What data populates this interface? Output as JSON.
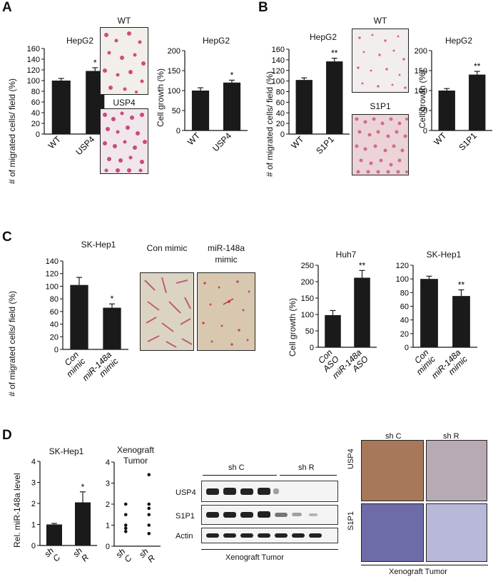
{
  "panel_labels": [
    "A",
    "B",
    "C",
    "D"
  ],
  "panelA": {
    "micro_labels": [
      "WT",
      "USP4"
    ]
  },
  "panelB": {
    "micro_labels": [
      "WT",
      "S1P1"
    ]
  },
  "panelC": {
    "micro_labels": [
      "Con mimic",
      "miR-148a mimic"
    ]
  },
  "panelD": {
    "blot": {
      "groups": [
        "sh C",
        "sh R"
      ],
      "rows": [
        "USP4",
        "S1P1",
        "Actin"
      ],
      "caption": "Xenograft Tumor"
    },
    "ihc": {
      "cols": [
        "sh C",
        "sh R"
      ],
      "rows": [
        "USP4",
        "S1P1"
      ],
      "caption": "Xenograft Tumor"
    }
  },
  "colors": {
    "bar": "#1a1a1a",
    "ihc_brown": "#8a5a44",
    "ihc_blue": "#6b6ea8",
    "stain": "#c8326b"
  },
  "chart_data": [
    {
      "id": "a1",
      "type": "bar",
      "title": "HepG2",
      "ylabel": "# of migrated cells/ field (%)",
      "categories": [
        "WT",
        "USP4"
      ],
      "values": [
        100,
        118
      ],
      "errors": [
        4,
        6
      ],
      "sig": [
        "",
        "*"
      ],
      "ylim": [
        0,
        160
      ],
      "yticks": [
        0,
        20,
        40,
        60,
        80,
        100,
        120,
        140,
        160
      ]
    },
    {
      "id": "a2",
      "type": "bar",
      "title": "HepG2",
      "ylabel": "Cell growth (%)",
      "categories": [
        "WT",
        "USP4"
      ],
      "values": [
        100,
        120
      ],
      "errors": [
        7,
        6
      ],
      "sig": [
        "",
        "*"
      ],
      "ylim": [
        0,
        200
      ],
      "yticks": [
        0,
        50,
        100,
        150,
        200
      ]
    },
    {
      "id": "b1",
      "type": "bar",
      "title": "HepG2",
      "ylabel": "# of migrated cells/ field (%)",
      "categories": [
        "WT",
        "S1P1"
      ],
      "values": [
        102,
        137
      ],
      "errors": [
        4,
        6
      ],
      "sig": [
        "",
        "**"
      ],
      "ylim": [
        0,
        160
      ],
      "yticks": [
        0,
        20,
        40,
        60,
        80,
        100,
        120,
        140,
        160
      ]
    },
    {
      "id": "b2",
      "type": "bar",
      "title": "HepG2",
      "ylabel": "Cell growth (%)",
      "categories": [
        "WT",
        "S1P1"
      ],
      "values": [
        100,
        140
      ],
      "errors": [
        5,
        8
      ],
      "sig": [
        "",
        "**"
      ],
      "ylim": [
        0,
        200
      ],
      "yticks": [
        0,
        50,
        100,
        150,
        200
      ]
    },
    {
      "id": "c1",
      "type": "bar",
      "title": "SK-Hep1",
      "ylabel": "# of migrated cells/ field (%)",
      "categories": [
        "Con mimic",
        "miR-148a mimic"
      ],
      "values": [
        102,
        66
      ],
      "errors": [
        12,
        6
      ],
      "sig": [
        "",
        "*"
      ],
      "ylim": [
        0,
        140
      ],
      "yticks": [
        0,
        20,
        40,
        60,
        80,
        100,
        120,
        140
      ]
    },
    {
      "id": "c2",
      "type": "bar",
      "title": "Huh7",
      "ylabel": "Cell growth (%)",
      "categories": [
        "Con ASO",
        "miR-148a ASO"
      ],
      "values": [
        98,
        212
      ],
      "errors": [
        14,
        22
      ],
      "sig": [
        "",
        "**"
      ],
      "ylim": [
        0,
        250
      ],
      "yticks": [
        0,
        50,
        100,
        150,
        200,
        250
      ]
    },
    {
      "id": "c3",
      "type": "bar",
      "title": "SK-Hep1",
      "ylabel": "",
      "categories": [
        "Con mimic",
        "miR-148a mimic"
      ],
      "values": [
        100,
        75
      ],
      "errors": [
        4,
        9
      ],
      "sig": [
        "",
        "**"
      ],
      "ylim": [
        0,
        120
      ],
      "yticks": [
        0,
        20,
        40,
        60,
        80,
        100,
        120
      ]
    },
    {
      "id": "d1",
      "type": "bar",
      "title": "SK-Hep1",
      "ylabel": "Rel. miR-148a level",
      "categories": [
        "sh C",
        "sh R"
      ],
      "values": [
        1.0,
        2.05
      ],
      "errors": [
        0.05,
        0.5
      ],
      "sig": [
        "",
        "*"
      ],
      "ylim": [
        0,
        4
      ],
      "yticks": [
        0,
        1,
        2,
        3,
        4
      ]
    },
    {
      "id": "d2",
      "type": "scatter",
      "title": "Xenograft Tumor",
      "categories": [
        "sh C",
        "sh R"
      ],
      "points": [
        [
          0.7,
          0.85,
          1.0,
          1.5,
          2.0
        ],
        [
          0.6,
          1.0,
          1.5,
          1.8,
          2.0,
          3.4
        ]
      ],
      "ylim": [
        0,
        4
      ],
      "yticks": [
        0,
        1,
        2,
        3,
        4
      ]
    }
  ]
}
